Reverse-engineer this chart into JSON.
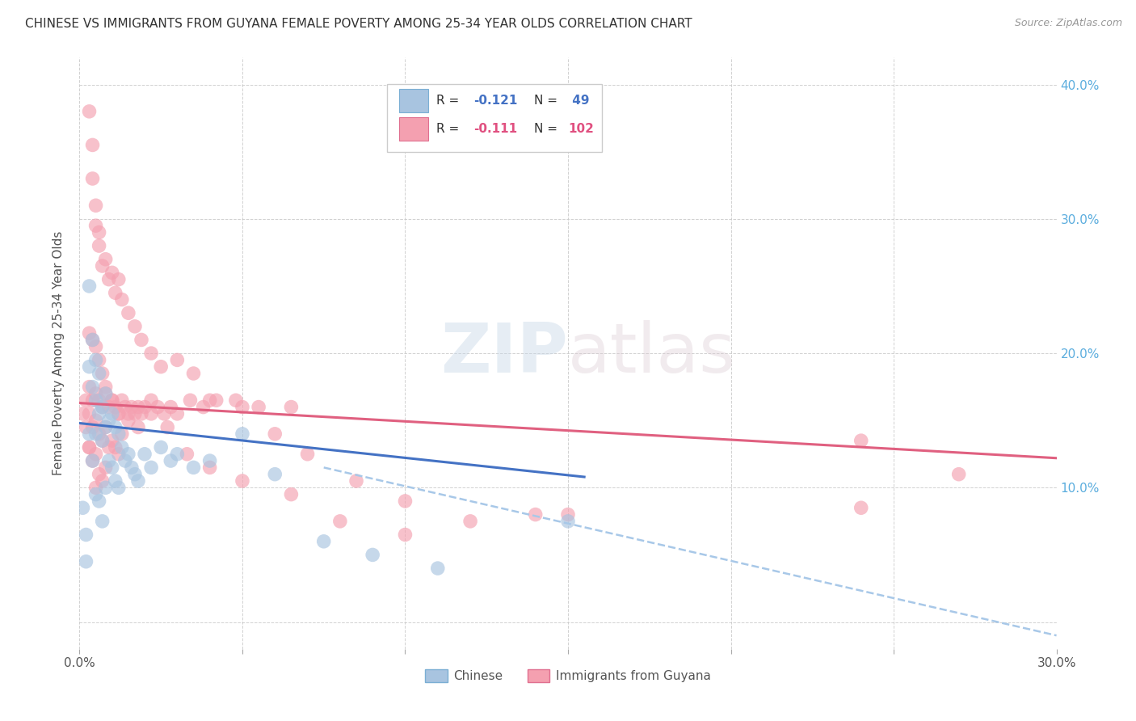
{
  "title": "CHINESE VS IMMIGRANTS FROM GUYANA FEMALE POVERTY AMONG 25-34 YEAR OLDS CORRELATION CHART",
  "source": "Source: ZipAtlas.com",
  "ylabel": "Female Poverty Among 25-34 Year Olds",
  "xlim": [
    0.0,
    0.3
  ],
  "ylim": [
    -0.02,
    0.42
  ],
  "background_color": "#ffffff",
  "grid_color": "#cccccc",
  "scatter_color1": "#a8c4e0",
  "scatter_color2": "#f4a0b0",
  "trendline_color1": "#4472c4",
  "trendline_color2": "#e06080",
  "trendline_dash_color1": "#a8c8e8",
  "chinese_x": [
    0.001,
    0.002,
    0.002,
    0.003,
    0.003,
    0.003,
    0.004,
    0.004,
    0.004,
    0.005,
    0.005,
    0.005,
    0.005,
    0.006,
    0.006,
    0.006,
    0.007,
    0.007,
    0.007,
    0.008,
    0.008,
    0.008,
    0.009,
    0.009,
    0.01,
    0.01,
    0.011,
    0.011,
    0.012,
    0.012,
    0.013,
    0.014,
    0.015,
    0.016,
    0.017,
    0.018,
    0.02,
    0.022,
    0.025,
    0.028,
    0.03,
    0.035,
    0.04,
    0.05,
    0.06,
    0.075,
    0.09,
    0.11,
    0.15
  ],
  "chinese_y": [
    0.085,
    0.065,
    0.045,
    0.25,
    0.19,
    0.14,
    0.21,
    0.175,
    0.12,
    0.195,
    0.165,
    0.14,
    0.095,
    0.185,
    0.155,
    0.09,
    0.16,
    0.135,
    0.075,
    0.17,
    0.145,
    0.1,
    0.15,
    0.12,
    0.155,
    0.115,
    0.145,
    0.105,
    0.14,
    0.1,
    0.13,
    0.12,
    0.125,
    0.115,
    0.11,
    0.105,
    0.125,
    0.115,
    0.13,
    0.12,
    0.125,
    0.115,
    0.12,
    0.14,
    0.11,
    0.06,
    0.05,
    0.04,
    0.075
  ],
  "guyana_x": [
    0.001,
    0.002,
    0.002,
    0.003,
    0.003,
    0.003,
    0.004,
    0.004,
    0.004,
    0.005,
    0.005,
    0.005,
    0.005,
    0.006,
    0.006,
    0.006,
    0.007,
    0.007,
    0.007,
    0.008,
    0.008,
    0.008,
    0.009,
    0.009,
    0.01,
    0.01,
    0.011,
    0.011,
    0.012,
    0.012,
    0.013,
    0.013,
    0.014,
    0.015,
    0.016,
    0.017,
    0.018,
    0.019,
    0.02,
    0.022,
    0.024,
    0.026,
    0.028,
    0.03,
    0.034,
    0.038,
    0.042,
    0.048,
    0.055,
    0.065,
    0.003,
    0.004,
    0.004,
    0.005,
    0.005,
    0.006,
    0.006,
    0.007,
    0.008,
    0.009,
    0.01,
    0.011,
    0.012,
    0.013,
    0.015,
    0.017,
    0.019,
    0.022,
    0.025,
    0.03,
    0.035,
    0.04,
    0.05,
    0.06,
    0.07,
    0.085,
    0.1,
    0.12,
    0.15,
    0.24,
    0.003,
    0.004,
    0.005,
    0.006,
    0.007,
    0.008,
    0.01,
    0.012,
    0.015,
    0.018,
    0.022,
    0.027,
    0.033,
    0.04,
    0.05,
    0.065,
    0.08,
    0.1,
    0.14,
    0.24,
    0.003,
    0.27
  ],
  "guyana_y": [
    0.155,
    0.165,
    0.145,
    0.175,
    0.155,
    0.13,
    0.165,
    0.145,
    0.12,
    0.17,
    0.15,
    0.125,
    0.1,
    0.165,
    0.14,
    0.11,
    0.16,
    0.135,
    0.105,
    0.17,
    0.145,
    0.115,
    0.16,
    0.13,
    0.165,
    0.135,
    0.16,
    0.13,
    0.155,
    0.125,
    0.165,
    0.14,
    0.16,
    0.155,
    0.16,
    0.155,
    0.16,
    0.155,
    0.16,
    0.165,
    0.16,
    0.155,
    0.16,
    0.155,
    0.165,
    0.16,
    0.165,
    0.165,
    0.16,
    0.16,
    0.38,
    0.355,
    0.33,
    0.31,
    0.295,
    0.29,
    0.28,
    0.265,
    0.27,
    0.255,
    0.26,
    0.245,
    0.255,
    0.24,
    0.23,
    0.22,
    0.21,
    0.2,
    0.19,
    0.195,
    0.185,
    0.165,
    0.16,
    0.14,
    0.125,
    0.105,
    0.09,
    0.075,
    0.08,
    0.135,
    0.215,
    0.21,
    0.205,
    0.195,
    0.185,
    0.175,
    0.165,
    0.155,
    0.15,
    0.145,
    0.155,
    0.145,
    0.125,
    0.115,
    0.105,
    0.095,
    0.075,
    0.065,
    0.08,
    0.085,
    0.13,
    0.11
  ],
  "trendline_chinese_x0": 0.0,
  "trendline_chinese_x1": 0.155,
  "trendline_chinese_y0": 0.148,
  "trendline_chinese_y1": 0.108,
  "trendline_guyana_x0": 0.0,
  "trendline_guyana_x1": 0.3,
  "trendline_guyana_y0": 0.163,
  "trendline_guyana_y1": 0.122,
  "trendline_dash_x0": 0.075,
  "trendline_dash_x1": 0.3,
  "trendline_dash_y0": 0.115,
  "trendline_dash_y1": -0.01
}
